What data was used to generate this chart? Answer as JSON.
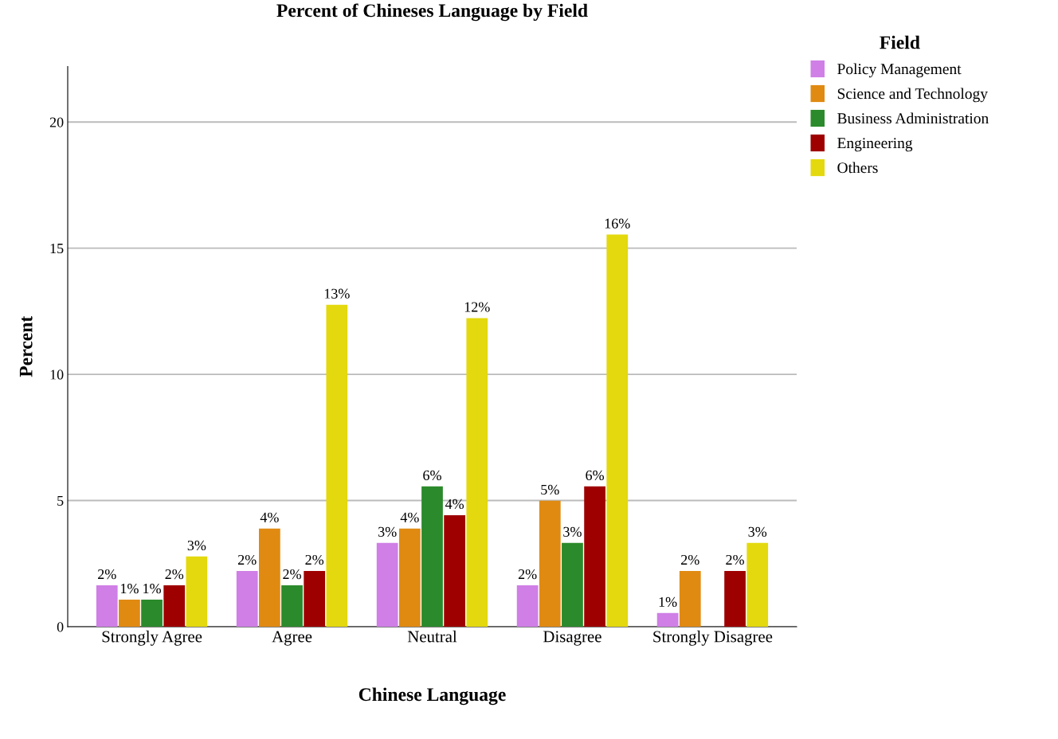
{
  "chart_data": {
    "type": "bar",
    "title": "Percent of Chineses Language by Field",
    "xlabel": "Chinese Language",
    "ylabel": "Percent",
    "legend_title": "Field",
    "categories": [
      "Strongly Agree",
      "Agree",
      "Neutral",
      "Disagree",
      "Strongly Disagree"
    ],
    "series": [
      {
        "name": "Policy Management",
        "color": "#cf7fe6",
        "values": [
          1.64,
          2.21,
          3.32,
          1.64,
          0.54
        ],
        "value_labels": [
          "2%",
          "2%",
          "3%",
          "2%",
          "1%"
        ]
      },
      {
        "name": "Science and Technology",
        "color": "#e08a12",
        "values": [
          1.07,
          3.89,
          3.89,
          4.99,
          2.21
        ],
        "value_labels": [
          "1%",
          "4%",
          "4%",
          "5%",
          "2%"
        ]
      },
      {
        "name": "Business Administration",
        "color": "#2b8a2b",
        "values": [
          1.07,
          1.64,
          5.56,
          3.32,
          null
        ],
        "value_labels": [
          "1%",
          "2%",
          "6%",
          "3%",
          null
        ]
      },
      {
        "name": "Engineering",
        "color": "#9e0000",
        "values": [
          1.64,
          2.21,
          4.42,
          5.56,
          2.21
        ],
        "value_labels": [
          "2%",
          "2%",
          "4%",
          "6%",
          "2%"
        ]
      },
      {
        "name": "Others",
        "color": "#e3d90e",
        "values": [
          2.78,
          12.76,
          12.23,
          15.54,
          3.32
        ],
        "value_labels": [
          "3%",
          "13%",
          "12%",
          "16%",
          "3%"
        ]
      }
    ],
    "ylim": [
      0,
      22.2
    ],
    "yticks": [
      0,
      5,
      10,
      15,
      20
    ],
    "grid": "y",
    "legend": "top right"
  }
}
